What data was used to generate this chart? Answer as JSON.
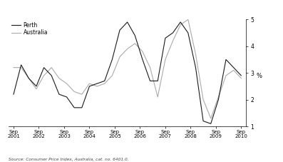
{
  "perth": [
    2.2,
    3.3,
    2.8,
    2.5,
    3.2,
    2.9,
    2.2,
    2.1,
    1.7,
    1.7,
    2.5,
    2.6,
    2.7,
    3.5,
    4.6,
    4.9,
    4.4,
    3.5,
    2.7,
    2.7,
    4.3,
    4.5,
    4.9,
    4.5,
    3.2,
    1.2,
    1.1,
    2.0,
    3.5,
    3.2,
    2.9
  ],
  "australia": [
    3.2,
    3.2,
    2.8,
    2.4,
    2.9,
    3.2,
    2.8,
    2.6,
    2.3,
    2.2,
    2.6,
    2.5,
    2.6,
    2.9,
    3.6,
    3.9,
    4.1,
    3.8,
    3.2,
    2.1,
    3.5,
    4.2,
    4.8,
    5.0,
    3.7,
    2.0,
    1.3,
    2.1,
    2.9,
    3.1,
    2.8
  ],
  "x_labels": [
    "Sep\n2001",
    "Sep\n2002",
    "Sep\n2003",
    "Sep\n2004",
    "Sep\n2005",
    "Sep\n2006",
    "Sep\n2007",
    "Sep\n2008",
    "Sep\n2009",
    "Sep\n2010"
  ],
  "ylim": [
    1,
    5
  ],
  "yticks": [
    1,
    2,
    3,
    4,
    5
  ],
  "ylabel": "%",
  "source": "Source: Consumer Price Index, Australia, cat. no. 6401.0.",
  "legend_perth": "Perth",
  "legend_australia": "Australia",
  "color_perth": "#1a1a1a",
  "color_australia": "#aaaaaa",
  "bg_color": "#ffffff",
  "linewidth": 0.8
}
